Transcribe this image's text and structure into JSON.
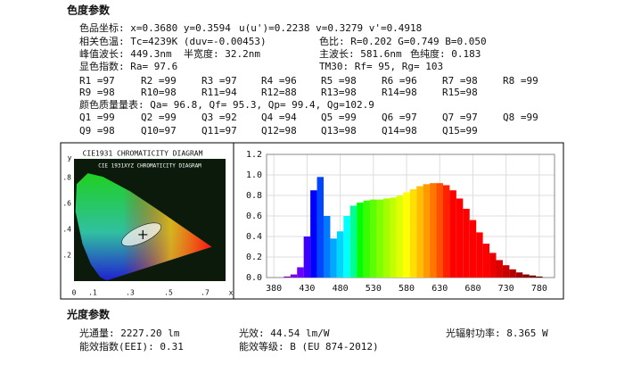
{
  "sections": [
    {
      "title": "色度参数",
      "rows": [
        [
          "色品坐标: x=0.3680 y=0.3594",
          "u(u')=0.2238 v=0.3279 v'=0.4918"
        ],
        [
          "相关色温: Tc=4239K (duv=-0.00453)",
          "色比: R=0.202 G=0.749 B=0.050"
        ],
        [
          "峰值波长: 449.3nm",
          "半宽度: 32.2nm",
          "主波长: 581.6nm",
          "色纯度: 0.183"
        ],
        [
          "显色指数: Ra= 97.6",
          "TM30: Rf=  95, Rg=  103"
        ],
        [
          "R1 =97",
          "R2 =99",
          "R3 =97",
          "R4 =96",
          "R5 =98",
          "R6 =96",
          "R7 =98",
          "R8 =99"
        ],
        [
          "R9 =98",
          "R10=98",
          "R11=94",
          "R12=88",
          "R13=98",
          "R14=98",
          "R15=98"
        ],
        [
          "颜色质量量表: Qa= 96.8, Qf= 95.3, Qp= 99.4, Qg=102.9"
        ],
        [
          "Q1 =99",
          "Q2 =99",
          "Q3 =92",
          "Q4 =94",
          "Q5 =99",
          "Q6 =97",
          "Q7 =97",
          "Q8 =99"
        ],
        [
          "Q9 =98",
          "Q10=97",
          "Q11=97",
          "Q12=98",
          "Q13=98",
          "Q14=98",
          "Q15=99"
        ]
      ]
    },
    {
      "title": "光度参数",
      "rows": [
        [
          "光通量: 2227.20 lm",
          "光效: 44.54 lm/W",
          "光辐射功率: 8.365 W"
        ],
        [
          "能效指数(EEI): 0.31",
          "能效等级: B (EU 874-2012)"
        ]
      ]
    }
  ],
  "cie": {
    "title": "CIE1931 CHROMATICITY DIAGRAM",
    "inner_title": "CIE 1931XYZ CHROMATICITY DIAGRAM",
    "y_axis": "y",
    "x_axis": "x",
    "y_labels": [
      ".8",
      ".6",
      ".4",
      ".2"
    ],
    "x_labels": [
      "0",
      ".1",
      ".3",
      ".5",
      ".7"
    ]
  },
  "chart_data": {
    "type": "bar",
    "x": [
      380,
      390,
      400,
      410,
      420,
      430,
      440,
      450,
      460,
      470,
      480,
      490,
      500,
      510,
      520,
      530,
      540,
      550,
      560,
      570,
      580,
      590,
      600,
      610,
      620,
      630,
      640,
      650,
      660,
      670,
      680,
      690,
      700,
      710,
      720,
      730,
      740,
      750,
      760,
      770,
      780
    ],
    "values": [
      0,
      0,
      0.01,
      0.03,
      0.1,
      0.4,
      0.85,
      0.98,
      0.6,
      0.38,
      0.45,
      0.6,
      0.7,
      0.73,
      0.75,
      0.76,
      0.76,
      0.77,
      0.78,
      0.8,
      0.83,
      0.86,
      0.89,
      0.91,
      0.92,
      0.92,
      0.9,
      0.85,
      0.77,
      0.67,
      0.56,
      0.44,
      0.33,
      0.24,
      0.17,
      0.12,
      0.08,
      0.05,
      0.03,
      0.02,
      0.01
    ],
    "xlim": [
      369,
      803
    ],
    "ylim": [
      0,
      1.2
    ],
    "xticks": [
      380,
      430,
      480,
      530,
      580,
      630,
      680,
      730,
      780
    ],
    "yticks": [
      {
        "value": 0,
        "label": "0.0"
      },
      0.2,
      0.4,
      0.6,
      0.8,
      {
        "value": 1,
        "label": "1.0"
      },
      1.2
    ],
    "grid": true
  }
}
